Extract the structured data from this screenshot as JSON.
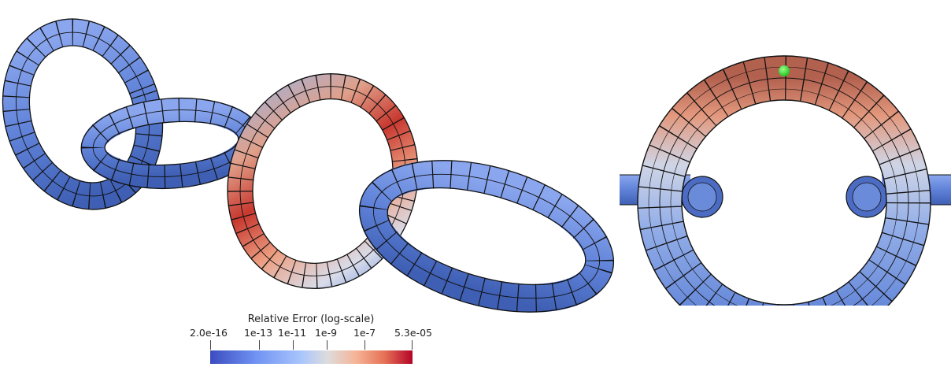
{
  "colorbar": {
    "title": "Relative Error (log-scale)",
    "ticks": [
      "2.0e-16",
      "1e-13",
      "1e-11",
      "1e-9",
      "1e-7",
      "5.3e-05"
    ],
    "colors": [
      "#3b4cc0",
      "#6f91f2",
      "#a9c5fc",
      "#dddcdc",
      "#f5b497",
      "#e67257",
      "#b40426"
    ]
  },
  "colors": {
    "low_error_blue": "#5b7fd6",
    "high_error_red": "#c8382f",
    "probe_point": "#22dd22",
    "mesh_lines": "#111111"
  }
}
